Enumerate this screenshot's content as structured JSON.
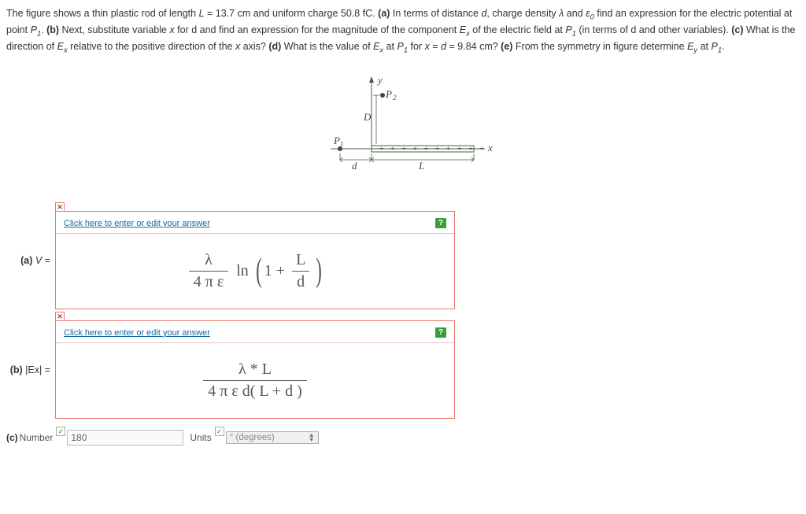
{
  "problem": {
    "text_html": "The figure shows a thin plastic rod of length <i>L</i> = 13.7 cm and uniform charge 50.8 fC. <b>(a)</b> In terms of distance <i>d</i>, charge density <i>λ</i> and <i>ε<sub>0</sub></i> find an expression for the electric potential at point <i>P<sub>1</sub></i>. <b>(b)</b> Next, substitute variable <i>x</i> for d and find an expression for the magnitude of the component <i>E<sub>x</sub></i> of the electric field at <i>P<sub>1</sub></i> (in terms of d and other variables). <b>(c)</b> What is the direction of <i>E<sub>x</sub></i> relative to the positive direction of the <i>x</i> axis? <b>(d)</b> What is the value of <i>E<sub>x</sub></i> at <i>P<sub>1</sub></i> for <i>x</i> = <i>d</i> = 9.84 cm? <b>(e)</b> From the symmetry in figure determine <i>E<sub>y</sub></i> at <i>P<sub>1</sub></i>."
  },
  "figure": {
    "labels": {
      "P1": "P₁",
      "P2": "P₂",
      "D": "D",
      "d": "d",
      "L": "L",
      "x": "x",
      "y": "y"
    },
    "colors": {
      "axis": "#555",
      "rod": "#3b6a3b",
      "dim": "#555"
    }
  },
  "part_a": {
    "row_label_html": "<b>(a)</b> <i>V</i> =",
    "edit_link": "Click here to enter or edit your answer",
    "help": "?",
    "status": "incorrect",
    "close": "✕",
    "status_color": "#e87a6a",
    "formula": {
      "frac1_num": "λ",
      "frac1_den": "4 π ε",
      "op": "ln",
      "inner_left": "1 +",
      "frac2_num": "L",
      "frac2_den": "d"
    }
  },
  "part_b": {
    "row_label_html": "<b>(b)</b> |Ex| =",
    "edit_link": "Click here to enter or edit your answer",
    "help": "?",
    "status": "incorrect",
    "close": "✕",
    "status_color": "#e87a6a",
    "formula": {
      "num": "λ * L",
      "den_html": "4 π ε d( L + d )"
    }
  },
  "part_c": {
    "label": "(c)",
    "number_label": "Number",
    "number_value": "180",
    "units_label": "Units",
    "units_value": "° (degrees)",
    "status": "correct",
    "check": "✓"
  }
}
